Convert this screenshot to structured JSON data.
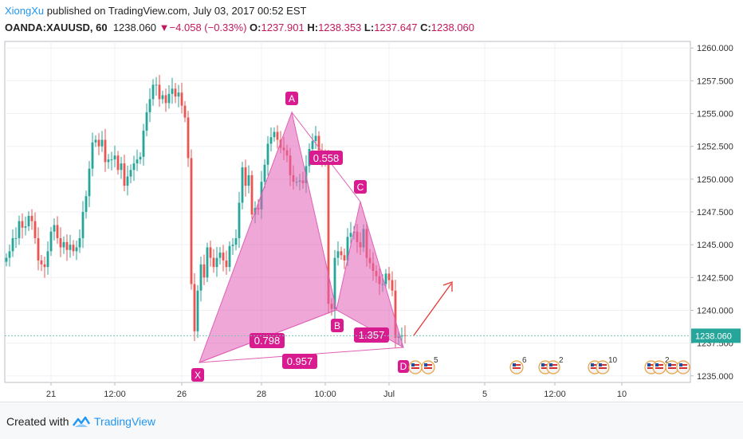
{
  "header": {
    "author": "XiongXu",
    "published": " published on TradingView.com, July 03, 2017 00:52 EST",
    "symbol": "OANDA:XAUUSD, 60",
    "last": "1238.060",
    "change": "−4.058 (−0.33%)",
    "o_label": "O:",
    "o_val": "1237.901",
    "h_label": "H:",
    "h_val": "1238.353",
    "l_label": "L:",
    "l_val": "1237.647",
    "c_label": "C:",
    "c_val": "1238.060"
  },
  "footer": {
    "created": "Created with",
    "brand": "TradingView"
  },
  "colors": {
    "up": "#26a69a",
    "down": "#ef5350",
    "pattern": "#e05fb5",
    "arrow": "#e53935",
    "axis_text": "#333333"
  },
  "chart_data": {
    "type": "candlestick",
    "ylim": [
      1234.5,
      1260.5
    ],
    "yticks": [
      "1260.000",
      "1257.500",
      "1255.000",
      "1252.500",
      "1250.000",
      "1247.500",
      "1245.000",
      "1242.500",
      "1240.000",
      "1237.500",
      "1235.000"
    ],
    "ytick_values": [
      1260,
      1257.5,
      1255,
      1252.5,
      1250,
      1247.5,
      1245,
      1242.5,
      1240,
      1237.5,
      1235
    ],
    "current_price_label": "1238.060",
    "current_price": 1238.06,
    "xticks": [
      {
        "label": "21",
        "i": 14
      },
      {
        "label": "12:00",
        "i": 34
      },
      {
        "label": "26",
        "i": 55
      },
      {
        "label": "28",
        "i": 80
      },
      {
        "label": "10:00",
        "i": 100
      },
      {
        "label": "Jul",
        "i": 120
      },
      {
        "label": "5",
        "i": 150
      },
      {
        "label": "12:00",
        "i": 172
      },
      {
        "label": "10",
        "i": 193
      }
    ],
    "x_slots": 215,
    "closes": [
      1244.0,
      1244.5,
      1245.5,
      1245.5,
      1246.8,
      1246.3,
      1246.4,
      1247.2,
      1246.8,
      1245.5,
      1243.8,
      1243.5,
      1243.3,
      1244.5,
      1246.0,
      1246.5,
      1245.5,
      1244.8,
      1245.2,
      1244.6,
      1245.0,
      1244.5,
      1244.8,
      1245.5,
      1247.5,
      1248.7,
      1250.8,
      1252.8,
      1253.0,
      1252.5,
      1253.0,
      1251.3,
      1251.5,
      1251.5,
      1251.8,
      1250.7,
      1251.2,
      1249.5,
      1250.2,
      1250.7,
      1251.2,
      1251.5,
      1251.7,
      1253.7,
      1255.1,
      1256.1,
      1257.2,
      1257.2,
      1256.1,
      1256.4,
      1255.8,
      1256.5,
      1256.9,
      1256.3,
      1256.6,
      1255.6,
      1254.7,
      1251.6,
      1242.0,
      1238.4,
      1241.5,
      1243.5,
      1242.5,
      1244.8,
      1244.0,
      1243.3,
      1244.0,
      1244.4,
      1243.8,
      1243.3,
      1244.9,
      1245.0,
      1245.5,
      1248.2,
      1250.9,
      1249.5,
      1250.3,
      1247.3,
      1247.8,
      1247.7,
      1249.8,
      1251.1,
      1252.7,
      1253.2,
      1253.6,
      1253.0,
      1252.4,
      1252.2,
      1251.8,
      1250.3,
      1249.8,
      1249.8,
      1249.9,
      1249.7,
      1251.0,
      1252.3,
      1252.9,
      1253.3,
      1252.2,
      1251.6,
      1251.4,
      1240.5,
      1240.1,
      1244.0,
      1244.5,
      1244.2,
      1243.8,
      1245.6,
      1245.9,
      1246.0,
      1245.2,
      1244.8,
      1246.2,
      1244.0,
      1243.6,
      1243.0,
      1242.6,
      1242.0,
      1242.0,
      1242.8,
      1242.3,
      1241.5,
      1237.9,
      1238.0,
      1238.1,
      1238.06
    ]
  }
}
